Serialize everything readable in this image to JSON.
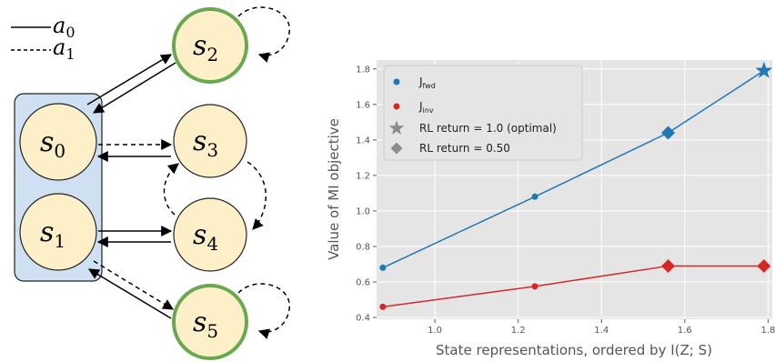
{
  "diagram": {
    "legend": [
      {
        "label": "a",
        "sub": "0",
        "style": "solid"
      },
      {
        "label": "a",
        "sub": "1",
        "style": "dashed"
      }
    ],
    "states": [
      {
        "id": "s0",
        "label": "s",
        "sub": "0",
        "goal": false,
        "grouped": true
      },
      {
        "id": "s1",
        "label": "s",
        "sub": "1",
        "goal": false,
        "grouped": true
      },
      {
        "id": "s2",
        "label": "s",
        "sub": "2",
        "goal": true,
        "grouped": false
      },
      {
        "id": "s3",
        "label": "s",
        "sub": "3",
        "goal": false,
        "grouped": false
      },
      {
        "id": "s4",
        "label": "s",
        "sub": "4",
        "goal": false,
        "grouped": false
      },
      {
        "id": "s5",
        "label": "s",
        "sub": "5",
        "goal": true,
        "grouped": false
      }
    ],
    "colors": {
      "node_fill": "#fdf0c8",
      "goal_border": "#6aa84f",
      "group_fill": "#cfe0f3"
    }
  },
  "chart_data": {
    "type": "line",
    "xlabel": "State representations, ordered by I(Z; S)",
    "ylabel": "Value of MI objective",
    "xlim": [
      0.86,
      1.81
    ],
    "ylim": [
      0.39,
      1.85
    ],
    "xticks": [
      "1.0",
      "1.2",
      "1.4",
      "1.6",
      "1.8"
    ],
    "yticks": [
      "0.4",
      "0.6",
      "0.8",
      "1.0",
      "1.2",
      "1.4",
      "1.6",
      "1.8"
    ],
    "grid": true,
    "background": "#e5e5e5",
    "legend_position": "top-left",
    "series": [
      {
        "name": "J",
        "sub": "fwd",
        "color": "#1f77b4",
        "x": [
          0.875,
          1.24,
          1.56,
          1.79
        ],
        "y": [
          0.68,
          1.08,
          1.44,
          1.79
        ],
        "markers": [
          "circle",
          "circle",
          "diamond",
          "star"
        ]
      },
      {
        "name": "J",
        "sub": "inv",
        "color": "#d62728",
        "x": [
          0.875,
          1.24,
          1.56,
          1.79
        ],
        "y": [
          0.46,
          0.575,
          0.69,
          0.69
        ],
        "markers": [
          "circle",
          "circle",
          "diamond",
          "diamond"
        ]
      }
    ],
    "marker_legend": [
      {
        "label": "RL return = 1.0 (optimal)",
        "marker": "star"
      },
      {
        "label": "RL return = 0.50",
        "marker": "diamond"
      }
    ]
  }
}
